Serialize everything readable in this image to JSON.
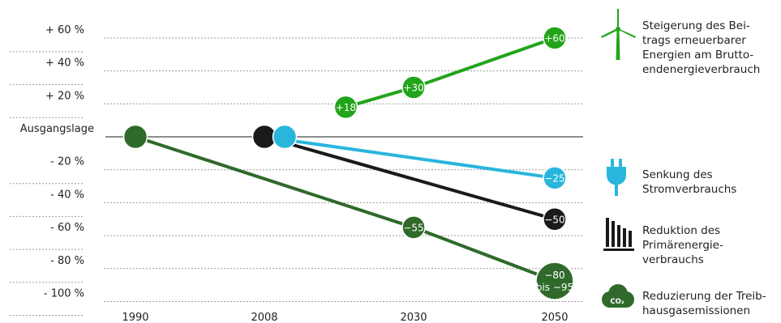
{
  "chart_data": {
    "type": "line",
    "ylim": [
      -110,
      70
    ],
    "y_ticks": [
      {
        "value": 60,
        "label": "+ 60 %"
      },
      {
        "value": 40,
        "label": "+ 40 %"
      },
      {
        "value": 20,
        "label": "+ 20 %"
      },
      {
        "value": 0,
        "label": "Ausgangslage"
      },
      {
        "value": -20,
        "label": "- 20 %"
      },
      {
        "value": -40,
        "label": "- 40 %"
      },
      {
        "value": -60,
        "label": "- 60 %"
      },
      {
        "value": -80,
        "label": "- 80 %"
      },
      {
        "value": -100,
        "label": "- 100 %"
      }
    ],
    "x_ticks": [
      1990,
      2008,
      2030,
      2050
    ],
    "series": [
      {
        "name": "Steigerung des Beitrags erneuerbarer Energien am Bruttoendenergieverbrauch",
        "color": "#22a41a",
        "points": [
          {
            "x": 2020,
            "y": 18,
            "label": "+18"
          },
          {
            "x": 2030,
            "y": 30,
            "label": "+30"
          },
          {
            "x": 2050,
            "y": 60,
            "label": "+60"
          }
        ]
      },
      {
        "name": "Senkung des Stromverbrauchs",
        "color": "#29b6dc",
        "points": [
          {
            "x": 2008,
            "y": 0,
            "label": ""
          },
          {
            "x": 2050,
            "y": -25,
            "label": "−25"
          }
        ]
      },
      {
        "name": "Reduktion des Primärenergieverbrauchs",
        "color": "#1a1a1a",
        "points": [
          {
            "x": 2008,
            "y": 0,
            "label": ""
          },
          {
            "x": 2050,
            "y": -50,
            "label": "−50"
          }
        ]
      },
      {
        "name": "Reduzierung der Treibhausgasemissionen",
        "color": "#2f6a2a",
        "points": [
          {
            "x": 1990,
            "y": 0,
            "label": ""
          },
          {
            "x": 2030,
            "y": -55,
            "label": "−55"
          },
          {
            "x": 2050,
            "y": -87.5,
            "label": "−80 bis −95"
          }
        ]
      }
    ]
  },
  "legend": [
    {
      "icon": "wind-turbine-icon",
      "color": "#22a41a",
      "lines": [
        "Steigerung des Bei-",
        "trags erneuerbarer",
        "Energien am Brutto-",
        "endenergieverbrauch"
      ]
    },
    {
      "icon": "power-plug-icon",
      "color": "#29b6dc",
      "lines": [
        "Senkung des",
        "Stromverbrauchs"
      ]
    },
    {
      "icon": "primary-energy-bars-icon",
      "color": "#1a1a1a",
      "lines": [
        "Reduktion des",
        "Primärenergie-",
        "verbrauchs"
      ]
    },
    {
      "icon": "co2-cloud-icon",
      "color": "#2f6a2a",
      "icon_text": "CO₂",
      "lines": [
        "Reduzierung der Treib-",
        "hausgasemissionen"
      ]
    }
  ]
}
